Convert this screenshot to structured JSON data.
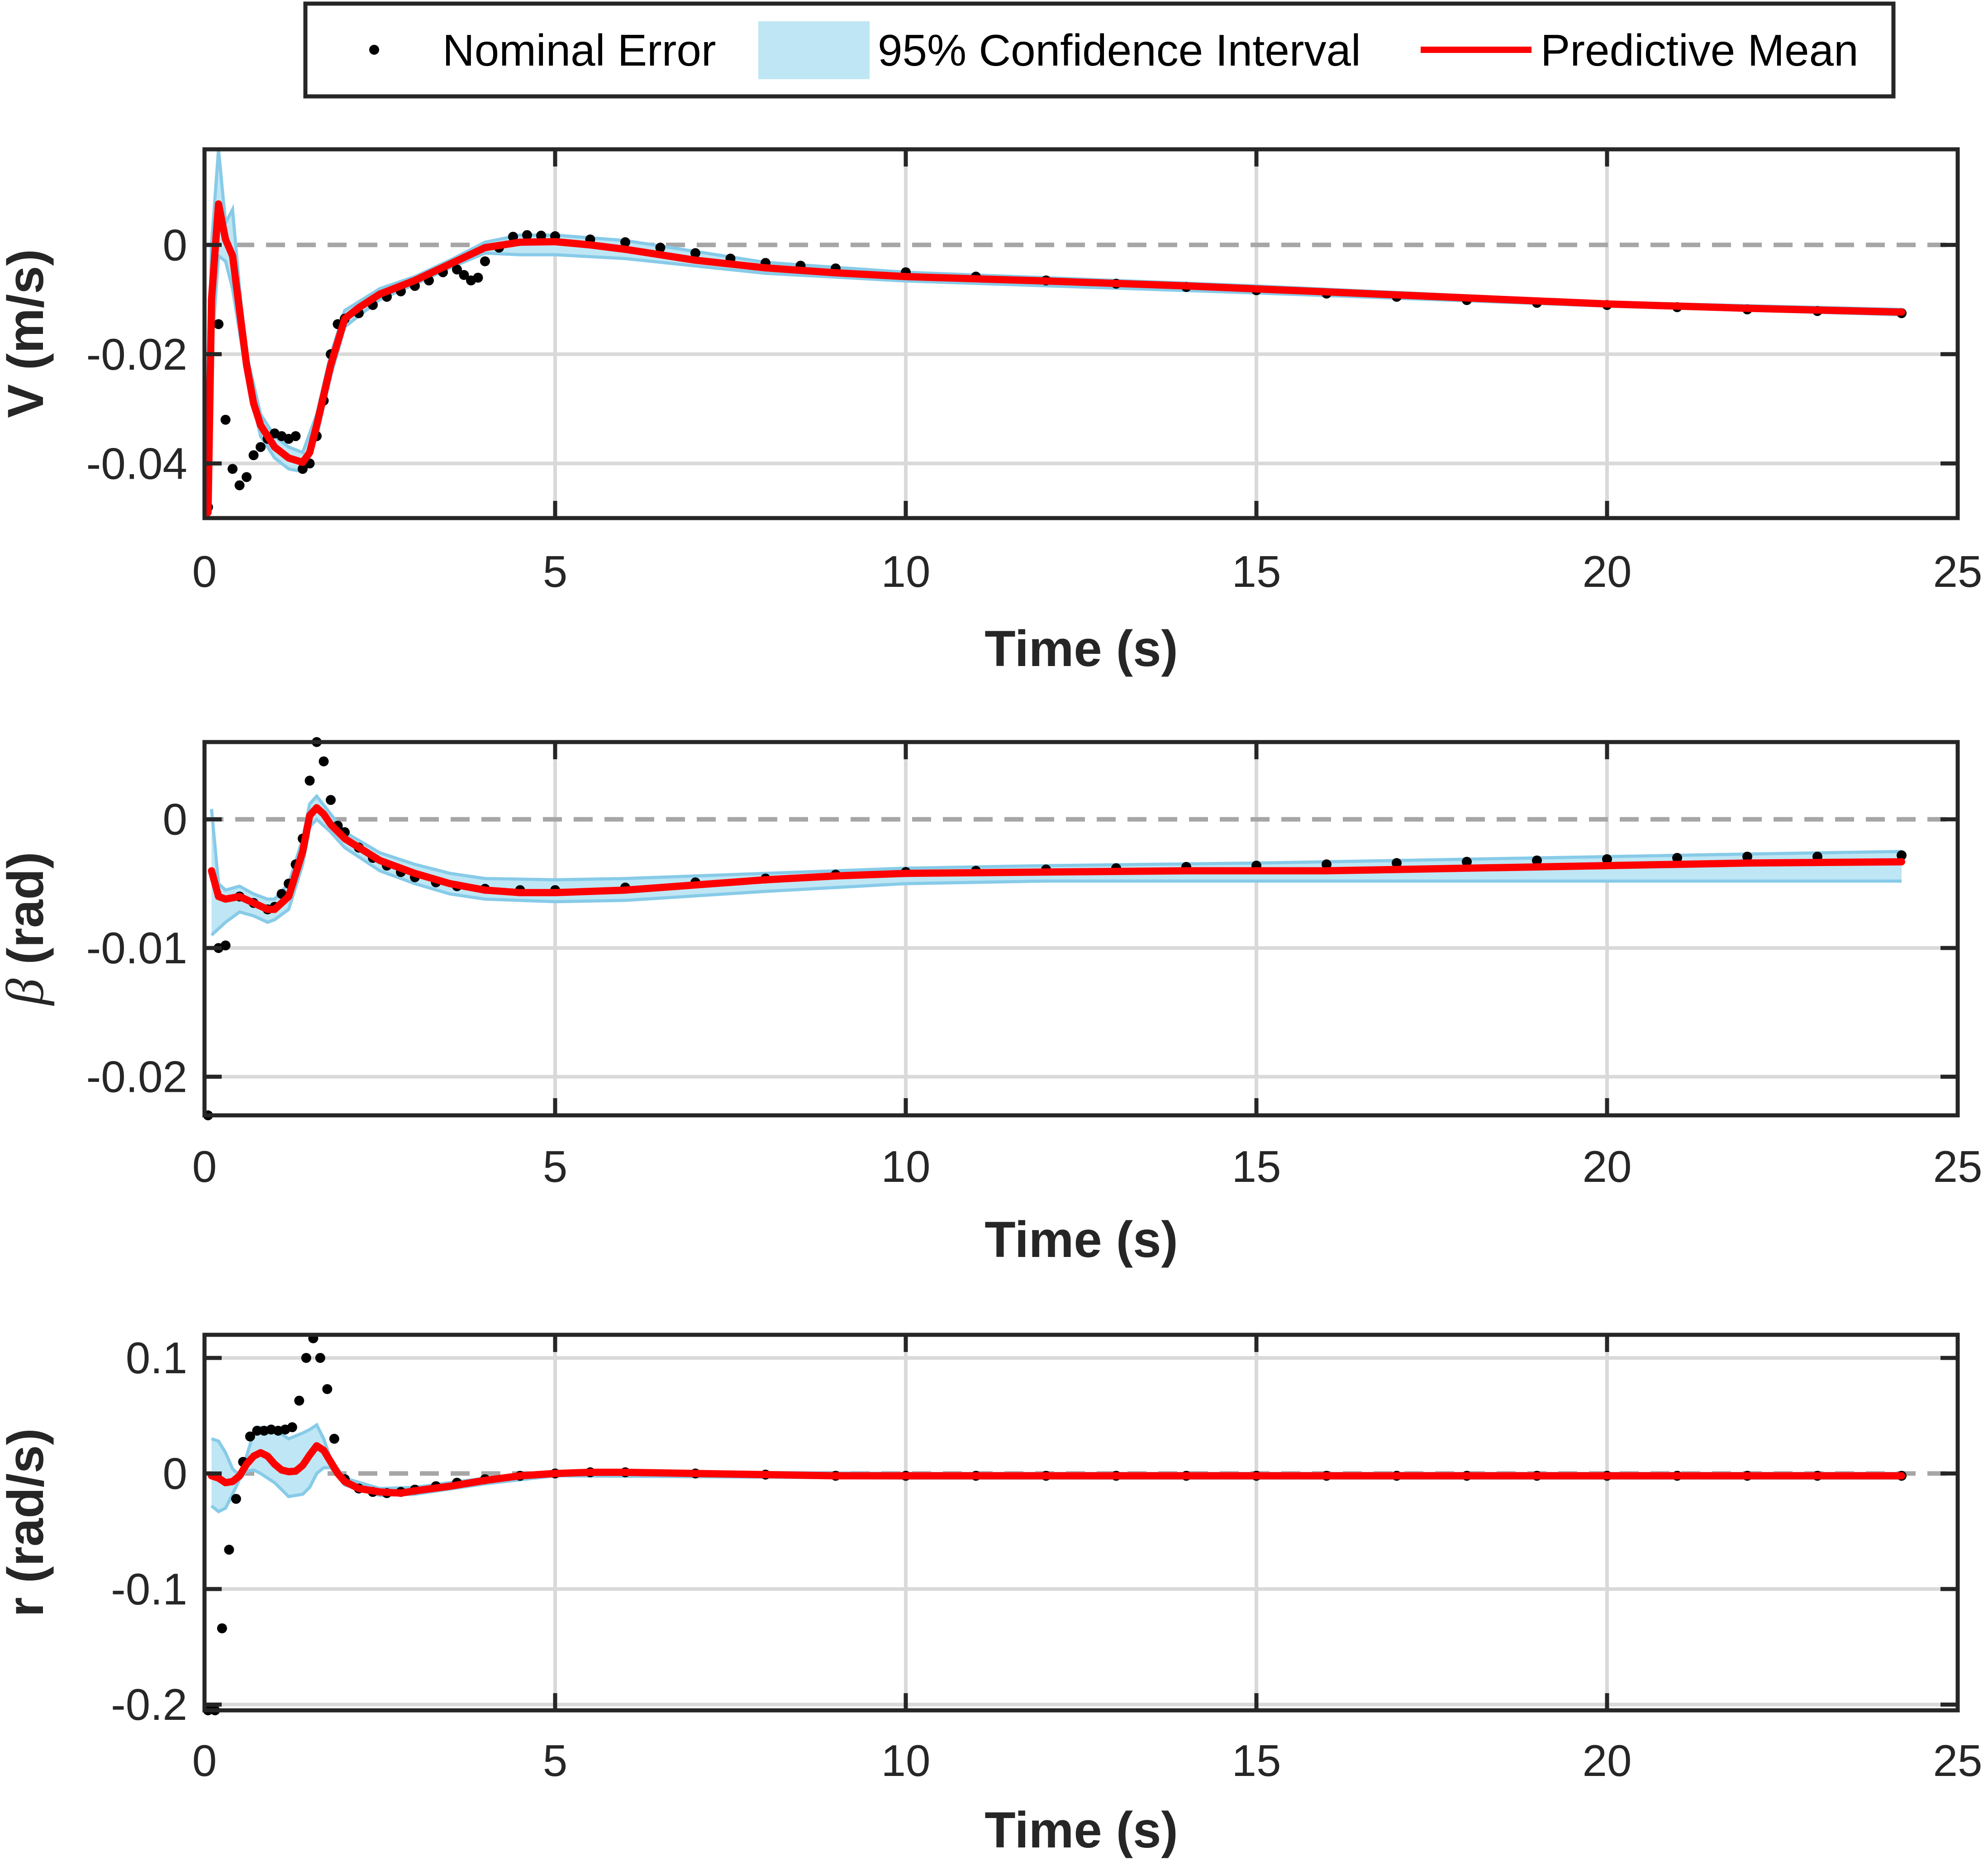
{
  "colors": {
    "mean": "#ff0000",
    "ci_fill": "#bfe6f4",
    "ci_edge": "#87cbe8",
    "points": "#000000",
    "axis": "#262626",
    "grid": "#d9d9d9",
    "zero": "#a6a6a6"
  },
  "legend": {
    "entries": [
      {
        "key": "points",
        "label": "Nominal Error"
      },
      {
        "key": "ci",
        "label": "95% Confidence Interval"
      },
      {
        "key": "mean",
        "label": "Predictive Mean"
      }
    ]
  },
  "chart_data": [
    {
      "type": "line",
      "title": "",
      "xlabel": "Time (s)",
      "ylabel": "V (m/s)",
      "ylabel_style": "bold",
      "xlim": [
        0,
        25
      ],
      "ylim": [
        -0.05,
        0.0175
      ],
      "xticks": [
        0,
        5,
        10,
        15,
        20,
        25
      ],
      "yticks": [
        -0.04,
        -0.02,
        0
      ],
      "ytick_labels": [
        "-0.04",
        "-0.02",
        "0"
      ],
      "grid": true,
      "zero_line": true,
      "series": [
        {
          "name": "Predictive Mean",
          "x": [
            0.05,
            0.1,
            0.2,
            0.3,
            0.4,
            0.5,
            0.6,
            0.7,
            0.8,
            1.0,
            1.2,
            1.4,
            1.5,
            1.6,
            1.8,
            2.0,
            2.2,
            2.5,
            3.0,
            3.5,
            4.0,
            4.5,
            5.0,
            5.5,
            6.0,
            7.0,
            8.0,
            9.0,
            10.0,
            12.0,
            14.0,
            16.0,
            18.0,
            20.0,
            22.0,
            24.2
          ],
          "y": [
            -0.049,
            -0.01,
            0.0075,
            0.001,
            -0.002,
            -0.012,
            -0.022,
            -0.029,
            -0.033,
            -0.037,
            -0.039,
            -0.0398,
            -0.038,
            -0.033,
            -0.022,
            -0.0135,
            -0.0115,
            -0.009,
            -0.0065,
            -0.0035,
            -0.0005,
            0.0005,
            0.0006,
            0.0,
            -0.0008,
            -0.0028,
            -0.0042,
            -0.0051,
            -0.0058,
            -0.0066,
            -0.0075,
            -0.0086,
            -0.0097,
            -0.0108,
            -0.0116,
            -0.0123
          ]
        },
        {
          "name": "95% Confidence Interval",
          "x": [
            0.05,
            0.1,
            0.2,
            0.3,
            0.4,
            0.5,
            0.6,
            0.8,
            1.0,
            1.2,
            1.4,
            1.6,
            1.8,
            2.0,
            2.5,
            3.0,
            3.5,
            4.0,
            4.5,
            5.0,
            6.0,
            8.0,
            10.0,
            15.0,
            20.0,
            24.2
          ],
          "upper": [
            -0.03,
            0.0,
            0.0175,
            0.004,
            0.0065,
            -0.008,
            -0.02,
            -0.031,
            -0.035,
            -0.037,
            -0.038,
            -0.031,
            -0.02,
            -0.012,
            -0.008,
            -0.0058,
            -0.0028,
            0.0005,
            0.0018,
            0.0018,
            0.0008,
            -0.0032,
            -0.005,
            -0.0075,
            -0.0105,
            -0.0118
          ],
          "lower": [
            -0.05,
            -0.02,
            -0.002,
            -0.003,
            -0.008,
            -0.016,
            -0.024,
            -0.035,
            -0.039,
            -0.041,
            -0.0415,
            -0.035,
            -0.024,
            -0.015,
            -0.01,
            -0.0072,
            -0.0042,
            -0.0015,
            -0.0018,
            -0.0018,
            -0.0025,
            -0.0052,
            -0.0066,
            -0.0088,
            -0.0112,
            -0.0128
          ]
        },
        {
          "name": "Nominal Error",
          "x": [
            0.05,
            0.2,
            0.3,
            0.4,
            0.5,
            0.6,
            0.7,
            0.8,
            0.9,
            1.0,
            1.1,
            1.2,
            1.3,
            1.4,
            1.5,
            1.6,
            1.7,
            1.8,
            1.9,
            2.0,
            2.2,
            2.4,
            2.6,
            2.8,
            3.0,
            3.2,
            3.4,
            3.6,
            3.7,
            3.8,
            3.9,
            4.0,
            4.2,
            4.4,
            4.6,
            4.8,
            5.0,
            5.5,
            6.0,
            6.5,
            7.0,
            7.5,
            8.0,
            8.5,
            9.0,
            10.0,
            11.0,
            12.0,
            13.0,
            14.0,
            15.0,
            16.0,
            17.0,
            18.0,
            19.0,
            20.0,
            21.0,
            22.0,
            23.0,
            24.2
          ],
          "y": [
            -0.048,
            -0.0145,
            -0.032,
            -0.041,
            -0.044,
            -0.0425,
            -0.0385,
            -0.037,
            -0.0355,
            -0.0345,
            -0.035,
            -0.0355,
            -0.035,
            -0.041,
            -0.04,
            -0.035,
            -0.0285,
            -0.02,
            -0.0145,
            -0.0135,
            -0.0125,
            -0.011,
            -0.0095,
            -0.0085,
            -0.0075,
            -0.0065,
            -0.005,
            -0.0045,
            -0.0055,
            -0.0065,
            -0.006,
            -0.003,
            -0.0005,
            0.0015,
            0.0018,
            0.0017,
            0.0016,
            0.001,
            0.0005,
            -0.0005,
            -0.0015,
            -0.0025,
            -0.0033,
            -0.0038,
            -0.0043,
            -0.005,
            -0.0058,
            -0.0065,
            -0.0071,
            -0.0077,
            -0.0083,
            -0.0089,
            -0.0095,
            -0.0101,
            -0.0106,
            -0.011,
            -0.0114,
            -0.0118,
            -0.0121,
            -0.0125
          ]
        }
      ]
    },
    {
      "type": "line",
      "title": "",
      "xlabel": "Time (s)",
      "ylabel": "β (rad)",
      "ylabel_symbol": "β",
      "ylabel_rest": " (rad)",
      "ylabel_style": "greek",
      "xlim": [
        0,
        25
      ],
      "ylim": [
        -0.023,
        0.006
      ],
      "xticks": [
        0,
        5,
        10,
        15,
        20,
        25
      ],
      "yticks": [
        -0.02,
        -0.01,
        0
      ],
      "ytick_labels": [
        "-0.02",
        "-0.01",
        "0"
      ],
      "grid": true,
      "zero_line": true,
      "series": [
        {
          "name": "Predictive Mean",
          "x": [
            0.1,
            0.2,
            0.3,
            0.5,
            0.7,
            0.9,
            1.0,
            1.2,
            1.4,
            1.5,
            1.6,
            1.7,
            1.8,
            2.0,
            2.5,
            3.0,
            3.5,
            4.0,
            4.5,
            5.0,
            6.0,
            7.0,
            8.0,
            9.0,
            10.0,
            12.0,
            14.0,
            16.0,
            18.0,
            20.0,
            22.0,
            24.2
          ],
          "y": [
            -0.004,
            -0.006,
            -0.0062,
            -0.006,
            -0.0065,
            -0.007,
            -0.007,
            -0.006,
            -0.0025,
            0.0003,
            0.0009,
            0.0004,
            -0.0004,
            -0.0015,
            -0.0032,
            -0.0042,
            -0.005,
            -0.0055,
            -0.0057,
            -0.0057,
            -0.0055,
            -0.0051,
            -0.0047,
            -0.0044,
            -0.0042,
            -0.0041,
            -0.004,
            -0.004,
            -0.0038,
            -0.0036,
            -0.0034,
            -0.0033
          ]
        },
        {
          "name": "95% Confidence Interval",
          "x": [
            0.1,
            0.2,
            0.3,
            0.5,
            0.7,
            0.9,
            1.0,
            1.2,
            1.4,
            1.5,
            1.6,
            1.8,
            2.0,
            2.5,
            3.0,
            3.5,
            4.0,
            5.0,
            6.0,
            8.0,
            10.0,
            12.0,
            15.0,
            18.0,
            20.0,
            22.0,
            24.2
          ],
          "upper": [
            0.0008,
            -0.005,
            -0.0055,
            -0.0052,
            -0.0058,
            -0.0062,
            -0.0062,
            -0.005,
            -0.0015,
            0.0012,
            0.0018,
            0.0004,
            -0.001,
            -0.0026,
            -0.0035,
            -0.0042,
            -0.0046,
            -0.0047,
            -0.0046,
            -0.0042,
            -0.0038,
            -0.0036,
            -0.0034,
            -0.0031,
            -0.0029,
            -0.0027,
            -0.0025
          ],
          "lower": [
            -0.009,
            -0.0085,
            -0.008,
            -0.0072,
            -0.0075,
            -0.008,
            -0.0078,
            -0.007,
            -0.0035,
            -0.0006,
            0.0,
            -0.001,
            -0.0022,
            -0.004,
            -0.005,
            -0.0058,
            -0.0062,
            -0.0064,
            -0.0063,
            -0.0056,
            -0.005,
            -0.0048,
            -0.0048,
            -0.0048,
            -0.0048,
            -0.0048,
            -0.0048
          ]
        },
        {
          "name": "Nominal Error",
          "x": [
            0.05,
            0.2,
            0.3,
            0.5,
            0.7,
            0.9,
            1.0,
            1.1,
            1.2,
            1.3,
            1.4,
            1.5,
            1.6,
            1.7,
            1.8,
            1.9,
            2.0,
            2.2,
            2.4,
            2.6,
            2.8,
            3.0,
            3.3,
            3.6,
            4.0,
            4.5,
            5.0,
            6.0,
            7.0,
            8.0,
            9.0,
            10.0,
            11.0,
            12.0,
            13.0,
            14.0,
            15.0,
            16.0,
            17.0,
            18.0,
            19.0,
            20.0,
            21.0,
            22.0,
            23.0,
            24.2
          ],
          "y": [
            -0.023,
            -0.01,
            -0.0098,
            -0.006,
            -0.0065,
            -0.007,
            -0.0068,
            -0.0058,
            -0.005,
            -0.0035,
            -0.0015,
            0.003,
            0.006,
            0.0045,
            0.0015,
            -0.0005,
            -0.001,
            -0.0022,
            -0.003,
            -0.0036,
            -0.0041,
            -0.0045,
            -0.0049,
            -0.0052,
            -0.0054,
            -0.0055,
            -0.0055,
            -0.0053,
            -0.0049,
            -0.0046,
            -0.0043,
            -0.0041,
            -0.004,
            -0.0039,
            -0.0038,
            -0.0037,
            -0.0036,
            -0.0035,
            -0.0034,
            -0.0033,
            -0.0032,
            -0.0031,
            -0.003,
            -0.0029,
            -0.0029,
            -0.0028
          ]
        }
      ]
    },
    {
      "type": "line",
      "title": "",
      "xlabel": "Time (s)",
      "ylabel": "r (rad/s)",
      "ylabel_style": "bold",
      "xlim": [
        0,
        25
      ],
      "ylim": [
        -0.205,
        0.12
      ],
      "xticks": [
        0,
        5,
        10,
        15,
        20,
        25
      ],
      "yticks": [
        -0.2,
        -0.1,
        0,
        0.1
      ],
      "ytick_labels": [
        "-0.2",
        "-0.1",
        "0",
        "0.1"
      ],
      "grid": true,
      "zero_line": true,
      "series": [
        {
          "name": "Predictive Mean",
          "x": [
            0.1,
            0.2,
            0.3,
            0.4,
            0.5,
            0.6,
            0.7,
            0.8,
            0.9,
            1.0,
            1.1,
            1.2,
            1.3,
            1.4,
            1.5,
            1.6,
            1.7,
            1.8,
            1.9,
            2.0,
            2.2,
            2.5,
            2.8,
            3.0,
            3.5,
            4.0,
            4.5,
            5.0,
            5.5,
            6.0,
            7.0,
            8.0,
            9.0,
            10.0,
            12.0,
            15.0,
            18.0,
            20.0,
            22.0,
            24.2
          ],
          "y": [
            -0.002,
            -0.004,
            -0.008,
            -0.007,
            -0.002,
            0.008,
            0.015,
            0.018,
            0.015,
            0.008,
            0.003,
            0.0015,
            0.002,
            0.007,
            0.016,
            0.024,
            0.02,
            0.01,
            0.0,
            -0.007,
            -0.013,
            -0.016,
            -0.017,
            -0.015,
            -0.011,
            -0.006,
            -0.002,
            0.0,
            0.001,
            0.001,
            0.0,
            -0.001,
            -0.002,
            -0.002,
            -0.002,
            -0.002,
            -0.002,
            -0.002,
            -0.002,
            -0.002
          ]
        },
        {
          "name": "95% Confidence Interval",
          "x": [
            0.1,
            0.2,
            0.3,
            0.4,
            0.5,
            0.6,
            0.7,
            0.8,
            1.0,
            1.2,
            1.4,
            1.5,
            1.6,
            1.7,
            1.8,
            2.0,
            2.5,
            3.0,
            4.0,
            5.0,
            10.0,
            24.2
          ],
          "upper": [
            0.03,
            0.028,
            0.018,
            0.004,
            -0.002,
            0.015,
            0.035,
            0.04,
            0.038,
            0.03,
            0.035,
            0.038,
            0.042,
            0.03,
            0.012,
            -0.004,
            -0.013,
            -0.012,
            -0.004,
            0.002,
            0.0,
            0.0
          ],
          "lower": [
            -0.028,
            -0.033,
            -0.03,
            -0.018,
            -0.005,
            0.002,
            0.003,
            0.0,
            -0.008,
            -0.02,
            -0.018,
            -0.012,
            0.0,
            0.005,
            0.005,
            -0.01,
            -0.019,
            -0.018,
            -0.009,
            -0.002,
            -0.004,
            -0.004
          ]
        },
        {
          "name": "Nominal Error",
          "x": [
            0.05,
            0.15,
            0.25,
            0.35,
            0.45,
            0.55,
            0.65,
            0.75,
            0.85,
            0.95,
            1.05,
            1.15,
            1.25,
            1.35,
            1.45,
            1.55,
            1.65,
            1.75,
            1.85,
            2.0,
            2.2,
            2.4,
            2.6,
            2.8,
            3.0,
            3.3,
            3.6,
            4.0,
            4.5,
            5.0,
            5.5,
            6.0,
            7.0,
            8.0,
            9.0,
            10.0,
            11.0,
            12.0,
            13.0,
            14.0,
            15.0,
            16.0,
            17.0,
            18.0,
            19.0,
            20.0,
            21.0,
            22.0,
            23.0,
            24.2
          ],
          "y": [
            -0.205,
            -0.205,
            -0.134,
            -0.066,
            -0.022,
            0.01,
            0.032,
            0.037,
            0.037,
            0.038,
            0.037,
            0.038,
            0.04,
            0.063,
            0.1,
            0.117,
            0.1,
            0.073,
            0.03,
            -0.005,
            -0.013,
            -0.016,
            -0.017,
            -0.016,
            -0.014,
            -0.011,
            -0.008,
            -0.005,
            -0.002,
            0.0,
            0.001,
            0.001,
            0.0,
            -0.001,
            -0.002,
            -0.002,
            -0.002,
            -0.002,
            -0.002,
            -0.002,
            -0.002,
            -0.002,
            -0.002,
            -0.002,
            -0.002,
            -0.002,
            -0.002,
            -0.002,
            -0.002,
            -0.002
          ]
        }
      ]
    }
  ]
}
